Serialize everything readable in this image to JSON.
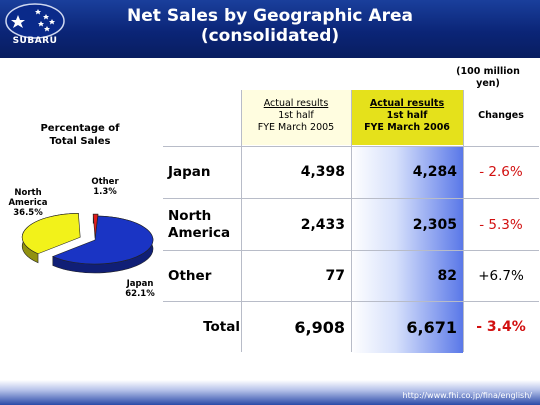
{
  "brand": "SUBARU",
  "header": {
    "title_line1": "Net Sales by Geographic Area",
    "title_line2": "(consolidated)"
  },
  "unit_note": {
    "line1": "(100 million",
    "line2": "yen)"
  },
  "table": {
    "col1": {
      "line1": "Actual results",
      "line2": "1st half",
      "line3": "FYE March 2005"
    },
    "col2": {
      "line1": "Actual results",
      "line2": "1st half",
      "line3": "FYE March 2006"
    },
    "col3": "Changes",
    "rows": [
      {
        "label_line1": "Japan",
        "label_line2": "",
        "prev": "4,398",
        "curr": "4,284",
        "change": "- 2.6%"
      },
      {
        "label_line1": "North",
        "label_line2": "America",
        "prev": "2,433",
        "curr": "2,305",
        "change": "- 5.3%"
      },
      {
        "label_line1": "Other",
        "label_line2": "",
        "prev": "77",
        "curr": "82",
        "change": "+6.7%"
      }
    ],
    "total": {
      "label": "Total",
      "prev": "6,908",
      "curr": "6,671",
      "change": "- 3.4%"
    }
  },
  "chart_data": {
    "type": "pie",
    "title": "Percentage of Total Sales",
    "title_line1": "Percentage of",
    "title_line2": "Total Sales",
    "slices": [
      {
        "name": "Japan",
        "value": 62.1,
        "label": "62.1%",
        "color": "#1a34c4"
      },
      {
        "name": "North America",
        "name_line1": "North",
        "name_line2": "America",
        "value": 36.5,
        "label": "36.5%",
        "color": "#f2f21a"
      },
      {
        "name": "Other",
        "value": 1.3,
        "label": "1.3%",
        "color": "#e01c1c"
      }
    ]
  },
  "footer": {
    "url": "http://www.fhi.co.jp/fina/english/"
  },
  "colors": {
    "header_blue": "#0b2577",
    "highlight_yellow": "#e5e11b",
    "negative_red": "#d21010"
  }
}
